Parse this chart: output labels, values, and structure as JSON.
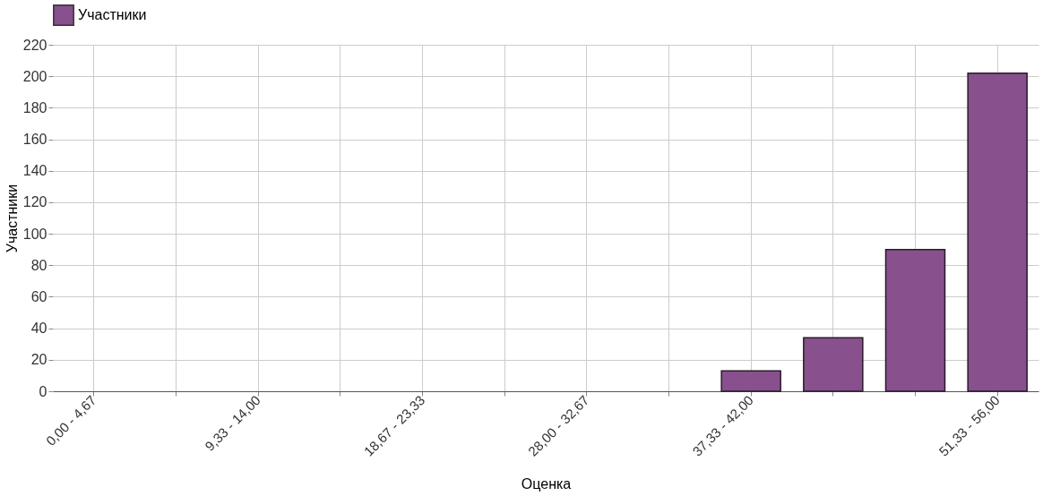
{
  "chart_data": {
    "type": "bar",
    "xlabel": "Оценка",
    "ylabel": "Участники",
    "categories": [
      "0,00 - 4,67",
      null,
      "9,33 - 14,00",
      null,
      "18,67 - 23,33",
      null,
      "28,00 - 32,67",
      null,
      "37,33 - 42,00",
      null,
      null,
      "51,33 - 56,00"
    ],
    "series": [
      {
        "name": "Участники",
        "color": "#88508c",
        "values": [
          0,
          0,
          0,
          0,
          0,
          0,
          0,
          0,
          13,
          34,
          90,
          202
        ]
      }
    ],
    "ylim": [
      0,
      220
    ],
    "yticks": [
      0,
      20,
      40,
      60,
      80,
      100,
      120,
      140,
      160,
      180,
      200,
      220
    ],
    "grid": true,
    "legend": "top"
  }
}
